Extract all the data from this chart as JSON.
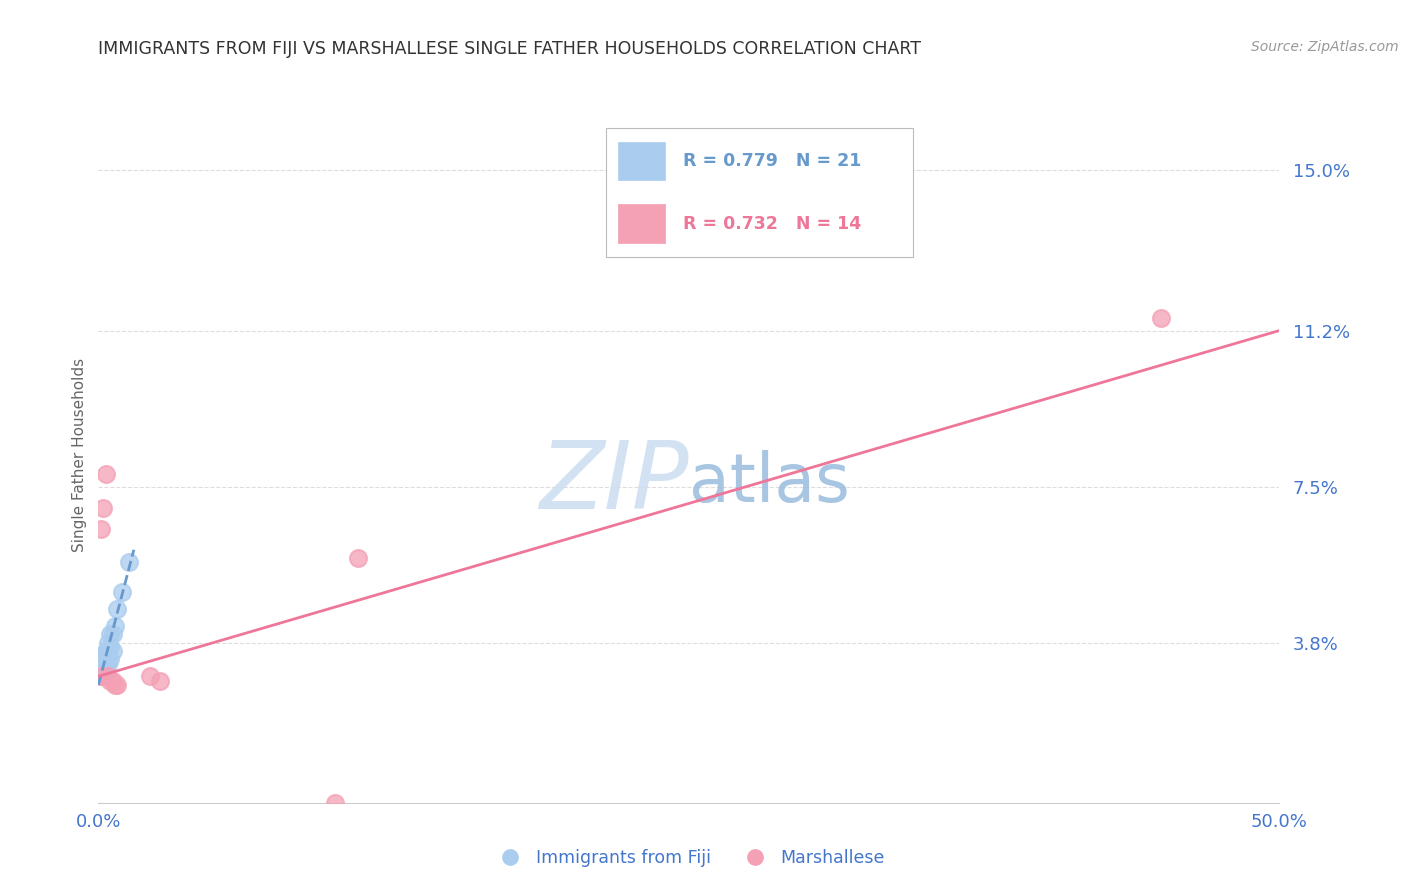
{
  "title": "IMMIGRANTS FROM FIJI VS MARSHALLESE SINGLE FATHER HOUSEHOLDS CORRELATION CHART",
  "source": "Source: ZipAtlas.com",
  "ylabel": "Single Father Households",
  "xlim": [
    0.0,
    0.5
  ],
  "ylim": [
    0.0,
    0.165
  ],
  "background_color": "#ffffff",
  "grid_color": "#dddddd",
  "title_color": "#333333",
  "axis_label_color": "#4477cc",
  "fiji_color": "#aaccee",
  "fiji_edge_color": "#aaccee",
  "marshallese_color": "#f4a0b5",
  "marshallese_edge_color": "#f4a0b5",
  "fiji_trendline_color": "#6699cc",
  "marshallese_trendline_color": "#ee7799",
  "fiji_R": 0.779,
  "fiji_N": 21,
  "marshallese_R": 0.732,
  "marshallese_N": 14,
  "fiji_x": [
    0.001,
    0.001,
    0.001,
    0.002,
    0.002,
    0.002,
    0.003,
    0.003,
    0.003,
    0.004,
    0.004,
    0.004,
    0.005,
    0.005,
    0.005,
    0.006,
    0.006,
    0.007,
    0.008,
    0.01,
    0.013
  ],
  "fiji_y": [
    0.03,
    0.032,
    0.034,
    0.03,
    0.033,
    0.035,
    0.031,
    0.034,
    0.036,
    0.033,
    0.035,
    0.038,
    0.034,
    0.037,
    0.04,
    0.036,
    0.04,
    0.042,
    0.046,
    0.05,
    0.057
  ],
  "marshallese_x": [
    0.001,
    0.001,
    0.002,
    0.003,
    0.004,
    0.005,
    0.006,
    0.1,
    0.11,
    0.45,
    0.022,
    0.026,
    0.007,
    0.008
  ],
  "marshallese_y": [
    0.065,
    0.03,
    0.07,
    0.078,
    0.03,
    0.029,
    0.029,
    0.0,
    0.058,
    0.115,
    0.03,
    0.029,
    0.028,
    0.028
  ],
  "fiji_trend_x0": 0.0,
  "fiji_trend_x1": 0.015,
  "fiji_trend_y0": 0.028,
  "fiji_trend_y1": 0.06,
  "marsh_trend_x0": 0.0,
  "marsh_trend_x1": 0.5,
  "marsh_trend_y0": 0.03,
  "marsh_trend_y1": 0.112,
  "ytick_values": [
    0.038,
    0.075,
    0.112,
    0.15
  ],
  "ytick_labels": [
    "3.8%",
    "7.5%",
    "11.2%",
    "15.0%"
  ],
  "xtick_values": [
    0.0,
    0.1,
    0.2,
    0.3,
    0.4,
    0.5
  ],
  "xtick_labels": [
    "0.0%",
    "",
    "",
    "",
    "",
    "50.0%"
  ]
}
